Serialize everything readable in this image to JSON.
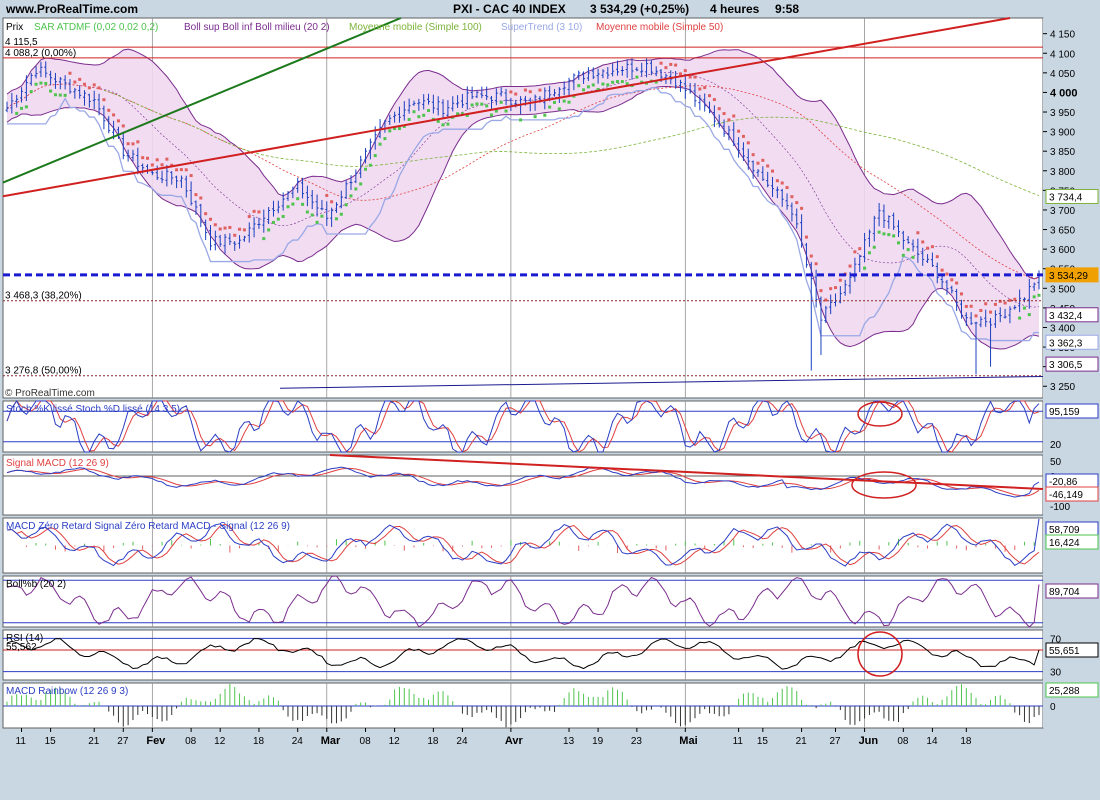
{
  "header": {
    "site": "www.ProRealTime.com",
    "title": "PXI - CAC 40 INDEX",
    "price_change": "3 534,29 (+0,25%)",
    "timeframe": "4 heures",
    "time": "9:58"
  },
  "watermark": "© ProRealTime.com",
  "colors": {
    "background": "#c9d7e3",
    "pane": "#ffffff",
    "candle_up": "#1a3fbf",
    "candle_down": "#1a3fbf",
    "bollinger": "#7b2d8e",
    "bollinger_fill": "#f0d8ef",
    "ma100": "#7cb33b",
    "ma50": "#e04040",
    "supertrend_up": "#4ec44e",
    "supertrend_down": "#e06060",
    "supertrend_line": "#9aa8e6",
    "stoch_k": "#2b3ec4",
    "stoch_d": "#e04040",
    "support_dotted": "#8b2a2a",
    "blue_dashed": "#1a1ad0",
    "annotation_red": "#d02020",
    "annotation_green": "#1c7a1c"
  },
  "chart_data": [
    {
      "type": "candlestick",
      "pane": "price",
      "legend": [
        {
          "label": "Prix",
          "color": "#000000"
        },
        {
          "label": "SAR ATDMF (0,02 0,02 0,2)",
          "color": "#4ec44e"
        },
        {
          "label": "Boll sup Boll inf Boll milieu (20 2)",
          "color": "#7b2d8e"
        },
        {
          "label": "Moyenne mobile (Simple 100)",
          "color": "#7cb33b"
        },
        {
          "label": "SuperTrend (3 10)",
          "color": "#9aa8e6"
        },
        {
          "label": "Moyenne mobile (Simple 50)",
          "color": "#e04040"
        }
      ],
      "ylim": [
        3220,
        4190
      ],
      "y_ticks": [
        3250,
        3300,
        3350,
        3400,
        3450,
        3500,
        3550,
        3600,
        3650,
        3700,
        3750,
        3800,
        3850,
        3900,
        3950,
        4000,
        4050,
        4100,
        4150
      ],
      "y_tick_labels": [
        "3 250",
        "3 300",
        "3 350",
        "3 400",
        "3 450",
        "3 500",
        "3 550",
        "3 600",
        "3 650",
        "3 700",
        "3 750",
        "3 800",
        "3 850",
        "3 900",
        "3 950",
        "4 000",
        "4 050",
        "4 100",
        "4 150"
      ],
      "bold_tick": 4000,
      "level_labels": [
        {
          "text": "4 115,5",
          "value": 4115.5
        },
        {
          "text": "4 088,2 (0,00%)",
          "value": 4088.2
        },
        {
          "text": "3 468,3 (38,20%)",
          "value": 3468.3
        },
        {
          "text": "3 276,8 (50,00%)",
          "value": 3276.8
        }
      ],
      "value_badges": [
        {
          "text": "3 734,4",
          "value": 3734.4,
          "color": "#7cb33b"
        },
        {
          "text": "3 534,29",
          "value": 3534.29,
          "color": "#f0a000"
        },
        {
          "text": "3 432,4",
          "value": 3432.4,
          "color": "#7b2d8e"
        },
        {
          "text": "3 362,3",
          "value": 3362.3,
          "color": "#9aa8e6"
        },
        {
          "text": "3 306,5",
          "value": 3306.5,
          "color": "#7b2d8e"
        }
      ],
      "closes_anchor": [
        [
          0,
          3960
        ],
        [
          6,
          4060
        ],
        [
          12,
          4020
        ],
        [
          18,
          3980
        ],
        [
          24,
          3850
        ],
        [
          30,
          3790
        ],
        [
          36,
          3780
        ],
        [
          42,
          3620
        ],
        [
          48,
          3620
        ],
        [
          54,
          3700
        ],
        [
          60,
          3760
        ],
        [
          66,
          3680
        ],
        [
          72,
          3800
        ],
        [
          78,
          3920
        ],
        [
          84,
          3980
        ],
        [
          90,
          3960
        ],
        [
          96,
          3990
        ],
        [
          102,
          3990
        ],
        [
          108,
          3970
        ],
        [
          114,
          4020
        ],
        [
          120,
          4050
        ],
        [
          126,
          4060
        ],
        [
          132,
          4070
        ],
        [
          138,
          4030
        ],
        [
          144,
          3960
        ],
        [
          150,
          3880
        ],
        [
          156,
          3780
        ],
        [
          162,
          3700
        ],
        [
          168,
          3420
        ],
        [
          174,
          3520
        ],
        [
          180,
          3700
        ],
        [
          186,
          3610
        ],
        [
          192,
          3540
        ],
        [
          198,
          3420
        ],
        [
          204,
          3420
        ],
        [
          210,
          3480
        ],
        [
          213,
          3534
        ]
      ],
      "horizontal_lines": [
        {
          "value": 4115.5,
          "color": "#d02020"
        },
        {
          "value": 4088.2,
          "color": "#d02020"
        },
        {
          "value": 3534.29,
          "color": "#1a1ad0",
          "style": "dashed"
        },
        {
          "value": 3468.3,
          "color": "#8b2a2a",
          "style": "dotted"
        },
        {
          "value": 3276.8,
          "color": "#8b2a2a",
          "style": "dotted"
        }
      ]
    },
    {
      "type": "line",
      "pane": "stochastic",
      "label": "Stoch %K lissé Stoch %D lissé (14 3 5)",
      "ylim": [
        0,
        100
      ],
      "y_ticks": [
        20,
        80
      ],
      "y_tick_labels": [
        "20",
        "80"
      ],
      "value_badge": "95,159",
      "series": [
        {
          "name": "Stoch %K lissé",
          "color": "#2b3ec4"
        },
        {
          "name": "Stoch %D lissé",
          "color": "#e04040"
        }
      ]
    },
    {
      "type": "line",
      "pane": "macd_signal",
      "label": "Signal MACD (12 26 9)",
      "ylim": [
        -130,
        70
      ],
      "y_ticks": [
        50,
        0,
        -100
      ],
      "y_tick_labels": [
        "50",
        "0",
        "-100"
      ],
      "value_badges": [
        "-20,86",
        "-46,149"
      ]
    },
    {
      "type": "line",
      "pane": "macd_zero_lag",
      "label": "MACD Zéro Retard Signal Zéro Retard MACD - Signal (12 26 9)",
      "value_badges": [
        "58,709",
        "16,424"
      ]
    },
    {
      "type": "line",
      "pane": "boll_pctb",
      "label": "Boll%b (20 2)",
      "value_badge": "89,704"
    },
    {
      "type": "line",
      "pane": "rsi",
      "label": "RSI (14)",
      "secondary_label": "55,562",
      "ylim": [
        20,
        80
      ],
      "y_ticks": [
        70,
        30
      ],
      "y_tick_labels": [
        "70",
        "30"
      ],
      "value_badge": "55,651"
    },
    {
      "type": "bar",
      "pane": "macd_rainbow",
      "label": "MACD Rainbow (12 26 9 3)",
      "value_badge": "25,288",
      "y_ticks": [
        0
      ],
      "y_tick_labels": [
        "0"
      ]
    }
  ],
  "x_axis": {
    "ticks": [
      {
        "label": "11",
        "bar": 3
      },
      {
        "label": "15",
        "bar": 9
      },
      {
        "label": "21",
        "bar": 18
      },
      {
        "label": "27",
        "bar": 24
      },
      {
        "label": "Fev",
        "bar": 30,
        "bold": true
      },
      {
        "label": "08",
        "bar": 38
      },
      {
        "label": "12",
        "bar": 44
      },
      {
        "label": "18",
        "bar": 52
      },
      {
        "label": "24",
        "bar": 60
      },
      {
        "label": "Mar",
        "bar": 66,
        "bold": true
      },
      {
        "label": "08",
        "bar": 74
      },
      {
        "label": "12",
        "bar": 80
      },
      {
        "label": "18",
        "bar": 88
      },
      {
        "label": "24",
        "bar": 94
      },
      {
        "label": "Avr",
        "bar": 104,
        "bold": true
      },
      {
        "label": "13",
        "bar": 116
      },
      {
        "label": "19",
        "bar": 122
      },
      {
        "label": "23",
        "bar": 130
      },
      {
        "label": "Mai",
        "bar": 140,
        "bold": true
      },
      {
        "label": "11",
        "bar": 151
      },
      {
        "label": "15",
        "bar": 156
      },
      {
        "label": "21",
        "bar": 164
      },
      {
        "label": "27",
        "bar": 171
      },
      {
        "label": "Jun",
        "bar": 177,
        "bold": true
      },
      {
        "label": "08",
        "bar": 185
      },
      {
        "label": "14",
        "bar": 191
      },
      {
        "label": "18",
        "bar": 198
      }
    ]
  }
}
